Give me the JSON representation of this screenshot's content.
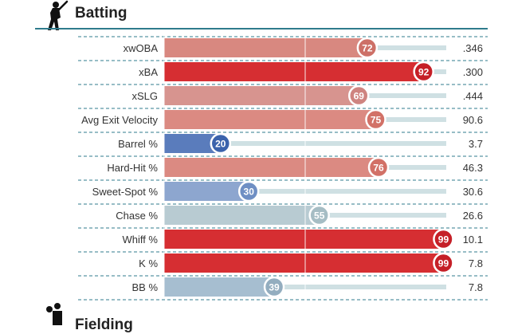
{
  "header": {
    "title": "Batting",
    "icon": "batter-icon"
  },
  "footer_section": {
    "title": "Fielding",
    "icon": "fielder-icon"
  },
  "chart_data": {
    "type": "bar",
    "orientation": "horizontal",
    "xlim": [
      0,
      100
    ],
    "gridlines": [
      50
    ],
    "categories": [
      "xwOBA",
      "xBA",
      "xSLG",
      "Avg Exit Velocity",
      "Barrel %",
      "Hard-Hit %",
      "Sweet-Spot %",
      "Chase %",
      "Whiff %",
      "K %",
      "BB %"
    ],
    "percentiles": [
      72,
      92,
      69,
      75,
      20,
      76,
      30,
      55,
      99,
      99,
      39
    ],
    "stat_values": [
      ".346",
      ".300",
      ".444",
      "90.6",
      "3.7",
      "46.3",
      "30.6",
      "26.6",
      "10.1",
      "7.8",
      "7.8"
    ],
    "colors": [
      "#d88880",
      "#d62e32",
      "#d7948f",
      "#db8a82",
      "#5a7cbc",
      "#db8a82",
      "#8da6cf",
      "#b8cbd2",
      "#d62e32",
      "#d62e32",
      "#a6bed0"
    ],
    "badge_colors": [
      "#cd7067",
      "#c51f27",
      "#cf8480",
      "#d27167",
      "#3b63ac",
      "#d27167",
      "#6f8fc4",
      "#a6bdc4",
      "#c51f27",
      "#c51f27",
      "#93adbf"
    ]
  }
}
